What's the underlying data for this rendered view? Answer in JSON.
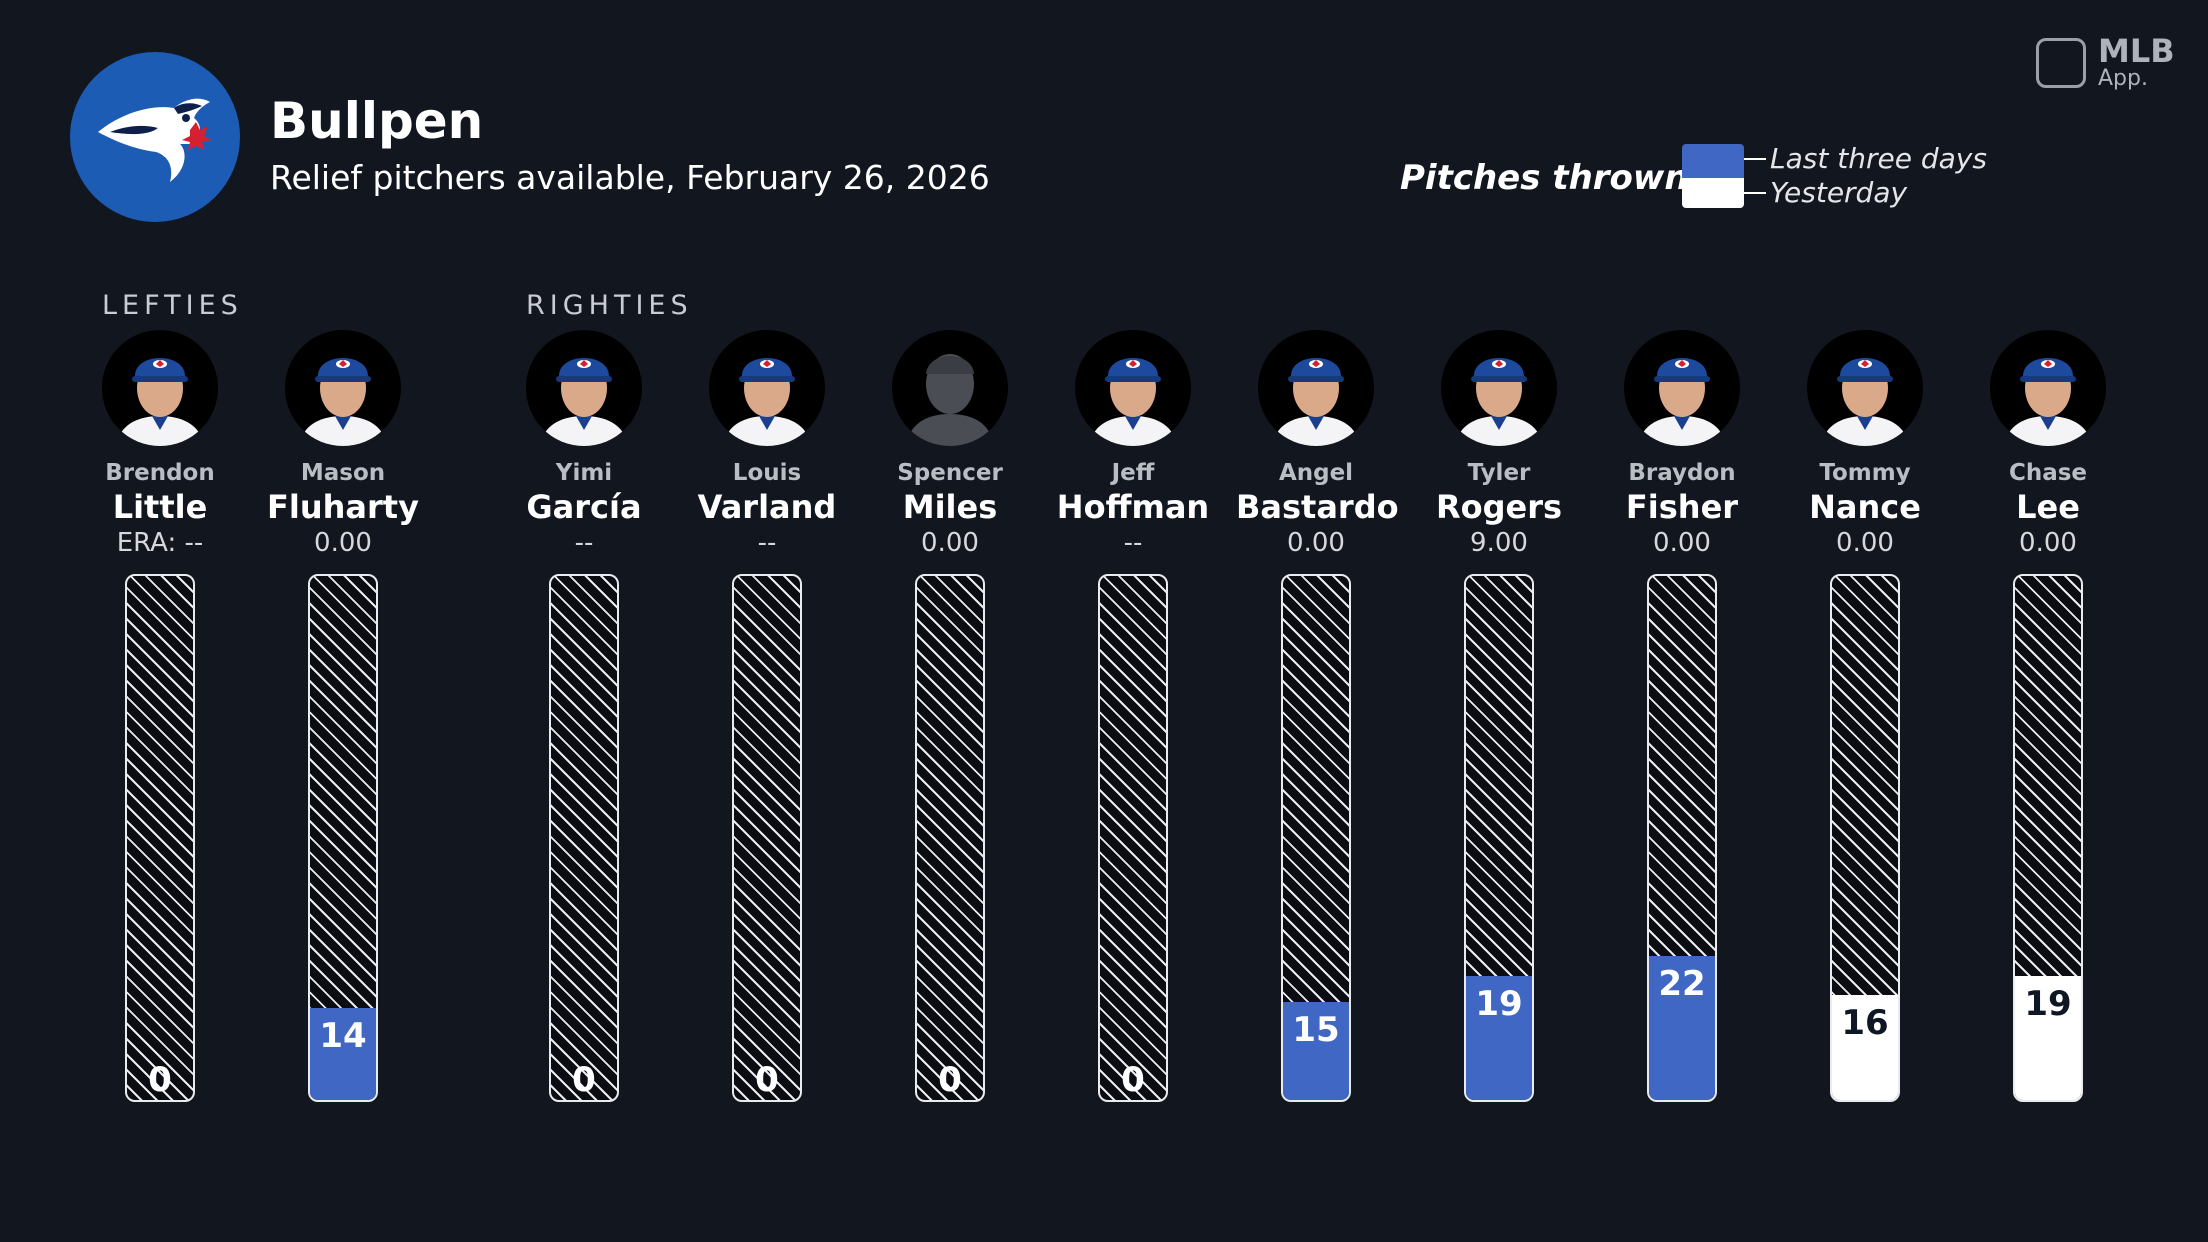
{
  "header": {
    "title": "Bullpen",
    "subtitle": "Relief pitchers available, February 26, 2026",
    "logo_icon": "blue-jays-logo-icon"
  },
  "brand": {
    "line1": "MLB",
    "line2": "App."
  },
  "legend": {
    "label": "Pitches thrown:",
    "last_three_days": "Last three days",
    "yesterday": "Yesterday",
    "colors": {
      "last_three_days": "#3f67c3",
      "yesterday": "#ffffff",
      "none": "#0b0d12"
    }
  },
  "groups": {
    "lefties": "LEFTIES",
    "righties": "RIGHTIES"
  },
  "chart_data": {
    "type": "bar",
    "title": "Pitches thrown",
    "ylim": [
      0,
      80
    ],
    "categories": [
      "Little",
      "Fluharty",
      "García",
      "Varland",
      "Miles",
      "Hoffman",
      "Bastardo",
      "Rogers",
      "Fisher",
      "Nance",
      "Lee"
    ],
    "series": [
      {
        "name": "Last three days",
        "values": [
          0,
          14,
          0,
          0,
          0,
          0,
          15,
          19,
          22,
          0,
          0
        ]
      },
      {
        "name": "Yesterday",
        "values": [
          0,
          0,
          0,
          0,
          0,
          0,
          0,
          0,
          0,
          16,
          19
        ]
      }
    ],
    "players": [
      {
        "first": "Brendon",
        "last": "Little",
        "era": "ERA: --",
        "pitches": 0,
        "when": "none",
        "hand": "L",
        "silhouette": false
      },
      {
        "first": "Mason",
        "last": "Fluharty",
        "era": "0.00",
        "pitches": 14,
        "when": "last_three_days",
        "hand": "L",
        "silhouette": false
      },
      {
        "first": "Yimi",
        "last": "García",
        "era": "--",
        "pitches": 0,
        "when": "none",
        "hand": "R",
        "silhouette": false
      },
      {
        "first": "Louis",
        "last": "Varland",
        "era": "--",
        "pitches": 0,
        "when": "none",
        "hand": "R",
        "silhouette": false
      },
      {
        "first": "Spencer",
        "last": "Miles",
        "era": "0.00",
        "pitches": 0,
        "when": "none",
        "hand": "R",
        "silhouette": true
      },
      {
        "first": "Jeff",
        "last": "Hoffman",
        "era": "--",
        "pitches": 0,
        "when": "none",
        "hand": "R",
        "silhouette": false
      },
      {
        "first": "Angel",
        "last": "Bastardo",
        "era": "0.00",
        "pitches": 15,
        "when": "last_three_days",
        "hand": "R",
        "silhouette": false
      },
      {
        "first": "Tyler",
        "last": "Rogers",
        "era": "9.00",
        "pitches": 19,
        "when": "last_three_days",
        "hand": "R",
        "silhouette": false
      },
      {
        "first": "Braydon",
        "last": "Fisher",
        "era": "0.00",
        "pitches": 22,
        "when": "last_three_days",
        "hand": "R",
        "silhouette": false
      },
      {
        "first": "Tommy",
        "last": "Nance",
        "era": "0.00",
        "pitches": 16,
        "when": "yesterday",
        "hand": "R",
        "silhouette": false
      },
      {
        "first": "Chase",
        "last": "Lee",
        "era": "0.00",
        "pitches": 19,
        "when": "yesterday",
        "hand": "R",
        "silhouette": false
      }
    ]
  }
}
